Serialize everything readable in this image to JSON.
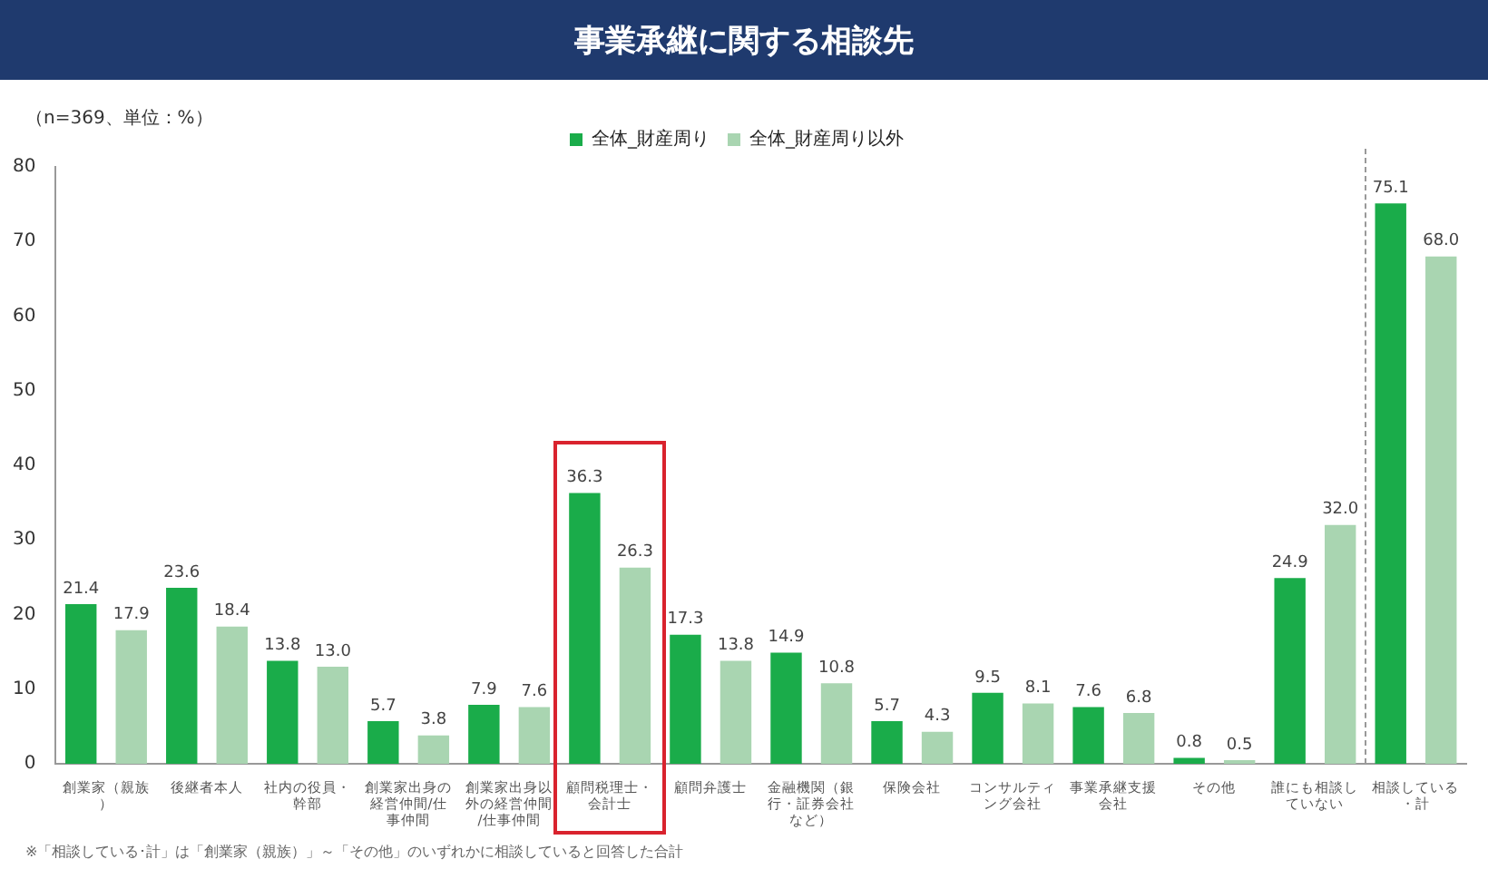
{
  "chart_data": {
    "type": "bar",
    "title": "事業承継に関する相談先",
    "categories": [
      "創業家（親族）",
      "後継者本人",
      "社内の役員・幹部",
      "創業家出身の経営仲間/仕事仲間",
      "創業家出身以外の経営仲間/仕事仲間",
      "顧問税理士・会計士",
      "顧問弁護士",
      "金融機関（銀行・証券会社など）",
      "保険会社",
      "コンサルティング会社",
      "事業承継支援会社",
      "その他",
      "誰にも相談していない",
      "相談している・計"
    ],
    "series": [
      {
        "name": "全体_財産周り",
        "color": "#1aac4a",
        "values": [
          21.4,
          23.6,
          13.8,
          5.7,
          7.9,
          36.3,
          17.3,
          14.9,
          5.7,
          9.5,
          7.6,
          0.8,
          24.9,
          75.1
        ],
        "value_labels": [
          "21.4",
          "23.6",
          "13.8",
          "5.7",
          "7.9",
          "36.3",
          "17.3",
          "14.9",
          "5.7",
          "9.5",
          "7.6",
          "0.8",
          "24.9",
          "75.1"
        ]
      },
      {
        "name": "全体_財産周り以外",
        "color": "#a9d5b1",
        "values": [
          17.9,
          18.4,
          13.0,
          3.8,
          7.6,
          26.3,
          13.8,
          10.8,
          4.3,
          8.1,
          6.8,
          0.5,
          32.0,
          68.0
        ],
        "value_labels": [
          "17.9",
          "18.4",
          "13.0",
          "3.8",
          "7.6",
          "26.3",
          "13.8",
          "10.8",
          "4.3",
          "8.1",
          "6.8",
          "0.5",
          "32.0",
          "68.0"
        ]
      }
    ],
    "ylim": [
      0,
      80
    ],
    "yticks": [
      0,
      10,
      20,
      30,
      40,
      50,
      60,
      70,
      80
    ],
    "grid": false,
    "legend": "top",
    "annotations": [
      "（n=369、単位：%）",
      "※「相談している･計」は「創業家（親族）」～「その他」のいずれかに相談していると回答した合計"
    ]
  }
}
